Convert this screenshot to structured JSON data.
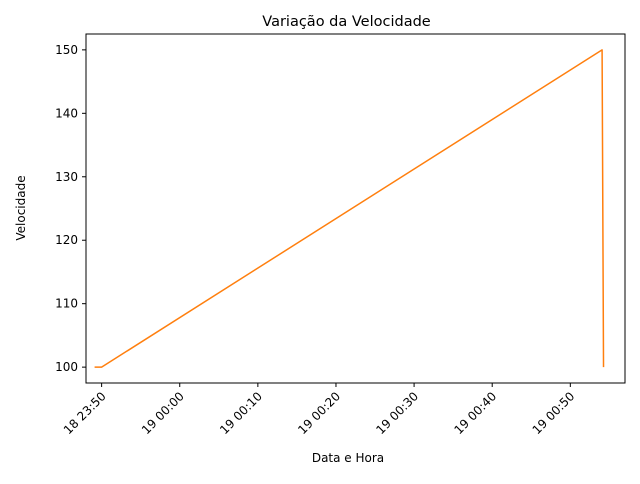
{
  "chart_data": {
    "type": "line",
    "title": "Variação da Velocidade",
    "xlabel": "Data e Hora",
    "ylabel": "Velocidade",
    "x_ticks": [
      {
        "time": "2023-01-18T23:50",
        "label": "18 23:50"
      },
      {
        "time": "2023-01-19T00:00",
        "label": "19 00:00"
      },
      {
        "time": "2023-01-19T00:10",
        "label": "19 00:10"
      },
      {
        "time": "2023-01-19T00:20",
        "label": "19 00:20"
      },
      {
        "time": "2023-01-19T00:30",
        "label": "19 00:30"
      },
      {
        "time": "2023-01-19T00:40",
        "label": "19 00:40"
      },
      {
        "time": "2023-01-19T00:50",
        "label": "19 00:50"
      }
    ],
    "y_ticks": [
      100,
      110,
      120,
      130,
      140,
      150
    ],
    "xlim": [
      "2023-01-18T23:48:00",
      "2023-01-19T00:57:00"
    ],
    "ylim": [
      97.5,
      152.5
    ],
    "grid": false,
    "series": [
      {
        "color": "#ff7f0e",
        "points": [
          {
            "x": "2023-01-18T23:49:06",
            "y": 100
          },
          {
            "x": "2023-01-18T23:50:00",
            "y": 100
          },
          {
            "x": "2023-01-19T00:54:04",
            "y": 150
          },
          {
            "x": "2023-01-19T00:54:15",
            "y": 100
          }
        ]
      }
    ]
  }
}
